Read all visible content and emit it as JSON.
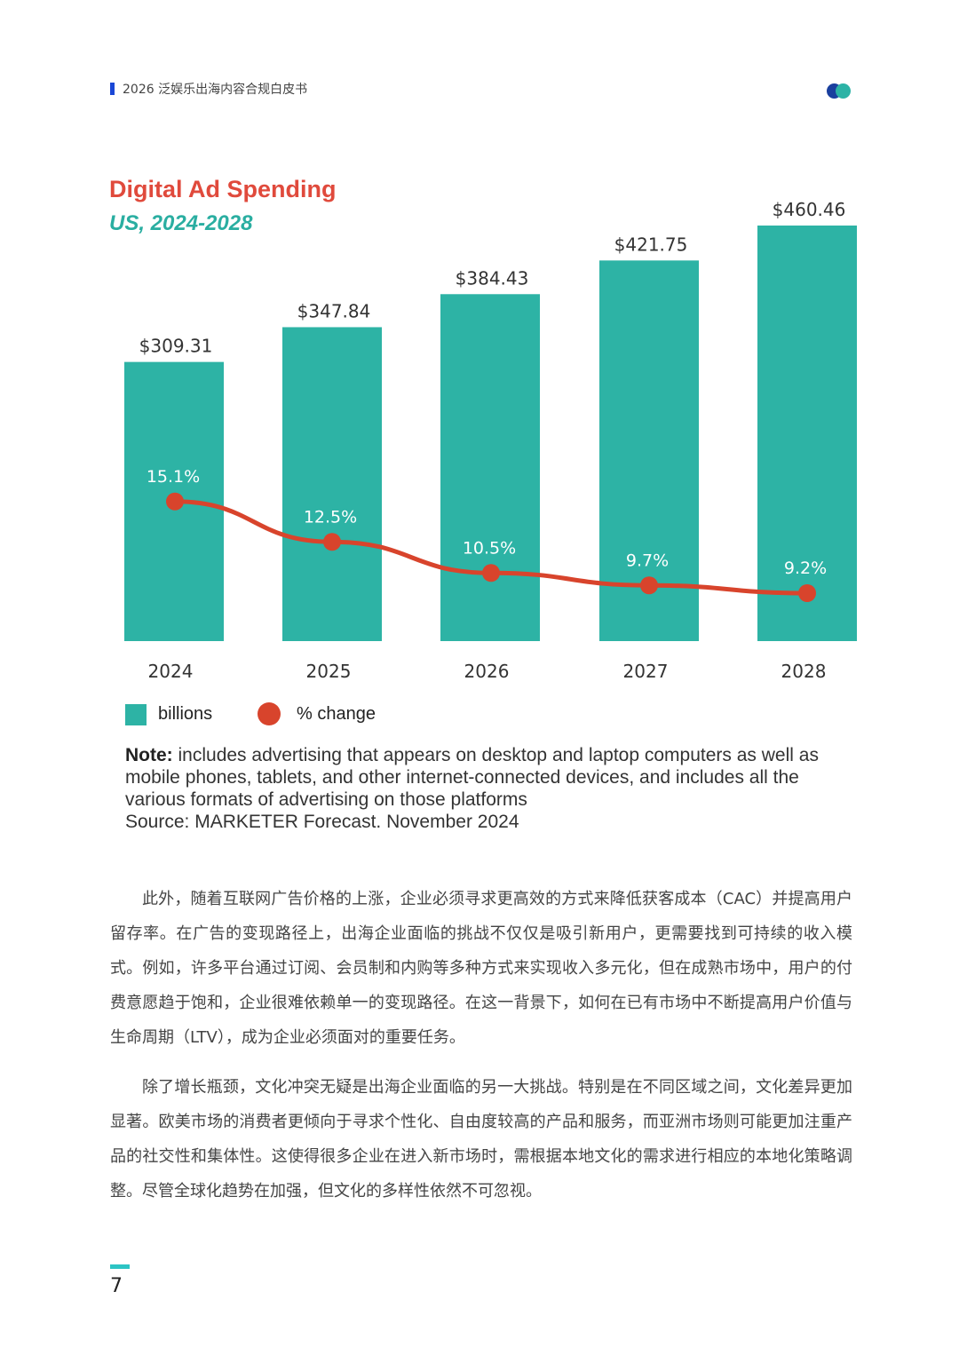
{
  "header": {
    "title": "2026 泛娱乐出海内容合规白皮书"
  },
  "chart_data": {
    "type": "bar",
    "title": "Digital Ad Spending",
    "subtitle": "US, 2024-2028",
    "categories": [
      "2024",
      "2025",
      "2026",
      "2027",
      "2028"
    ],
    "series": [
      {
        "name": "billions",
        "values": [
          309.31,
          347.84,
          384.43,
          421.75,
          460.46
        ],
        "labels": [
          "$309.31",
          "$347.84",
          "$384.43",
          "$421.75",
          "$460.46"
        ],
        "color": "#2db3a5"
      },
      {
        "name": "% change",
        "values": [
          15.1,
          12.5,
          10.5,
          9.7,
          9.2
        ],
        "labels": [
          "15.1%",
          "12.5%",
          "10.5%",
          "9.7%",
          "9.2%"
        ],
        "color": "#d8442c"
      }
    ],
    "legend": [
      "billions",
      "% change"
    ],
    "ylim": [
      0,
      460.46
    ]
  },
  "note": {
    "label": "Note:",
    "text": " includes advertising that appears on desktop and laptop computers as well as mobile phones, tablets, and other internet-connected devices, and includes all the various formats of advertising on those platforms",
    "source": "Source: MARKETER Forecast. November 2024"
  },
  "body": {
    "p1": "此外，随着互联网广告价格的上涨，企业必须寻求更高效的方式来降低获客成本（CAC）并提高用户留存率。在广告的变现路径上，出海企业面临的挑战不仅仅是吸引新用户，更需要找到可持续的收入模式。例如，许多平台通过订阅、会员制和内购等多种方式来实现收入多元化，但在成熟市场中，用户的付费意愿趋于饱和，企业很难依赖单一的变现路径。在这一背景下，如何在已有市场中不断提高用户价值与生命周期（LTV），成为企业必须面对的重要任务。",
    "p2": "除了增长瓶颈，文化冲突无疑是出海企业面临的另一大挑战。特别是在不同区域之间，文化差异更加显著。欧美市场的消费者更倾向于寻求个性化、自由度较高的产品和服务，而亚洲市场则可能更加注重产品的社交性和集体性。这使得很多企业在进入新市场时，需根据本地文化的需求进行相应的本地化策略调整。尽管全球化趋势在加强，但文化的多样性依然不可忽视。"
  },
  "footer": {
    "page_number": "7"
  },
  "colors": {
    "accent_blue": "#1a47d6",
    "teal": "#2db3a5",
    "red": "#d8442c",
    "title_red": "#e04a3c"
  }
}
